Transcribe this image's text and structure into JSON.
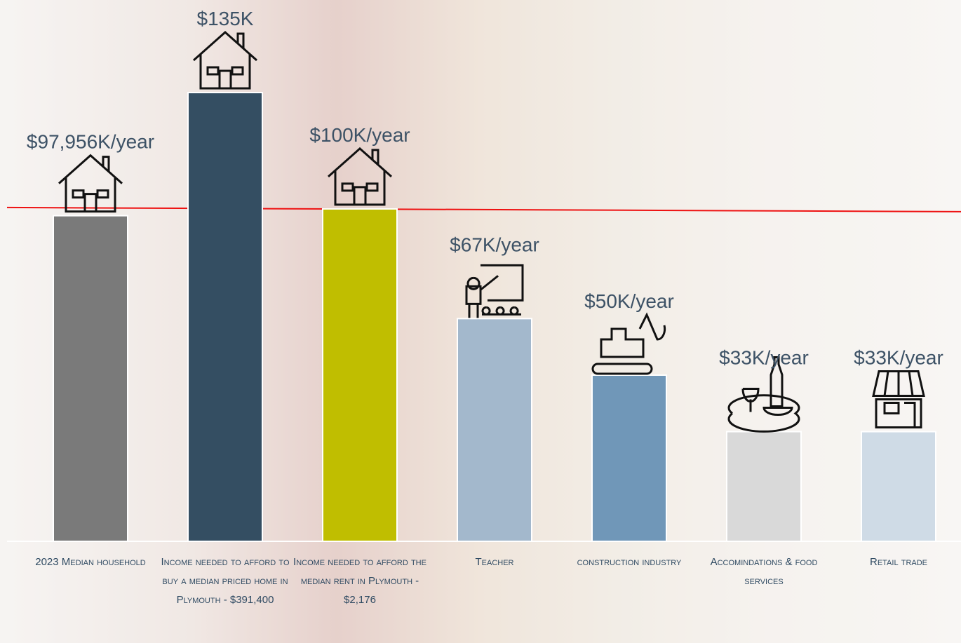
{
  "chart_data": {
    "type": "bar",
    "categories": [
      "2023 Median household",
      "Income needed to afford to buy a median priced home in Plymouth - $391,400",
      "Income needed to afford the median rent in Plymouth - $2,176",
      "Teacher",
      "construction industry",
      "Accomindations & food services",
      "Retail trade"
    ],
    "series": [
      {
        "values": [
          97.956,
          135,
          100,
          67,
          50,
          33,
          33
        ],
        "value_labels": [
          "$97,956K/year",
          "$135K",
          "$100K/year",
          "$67K/year",
          "$50K/year",
          "$33K/year",
          "$33K/year"
        ],
        "colors": [
          "#7a7a7a",
          "#344e62",
          "#c0be00",
          "#a3b8cc",
          "#7097b8",
          "#d9d9d9",
          "#cfdbe6"
        ]
      }
    ]
  }
}
